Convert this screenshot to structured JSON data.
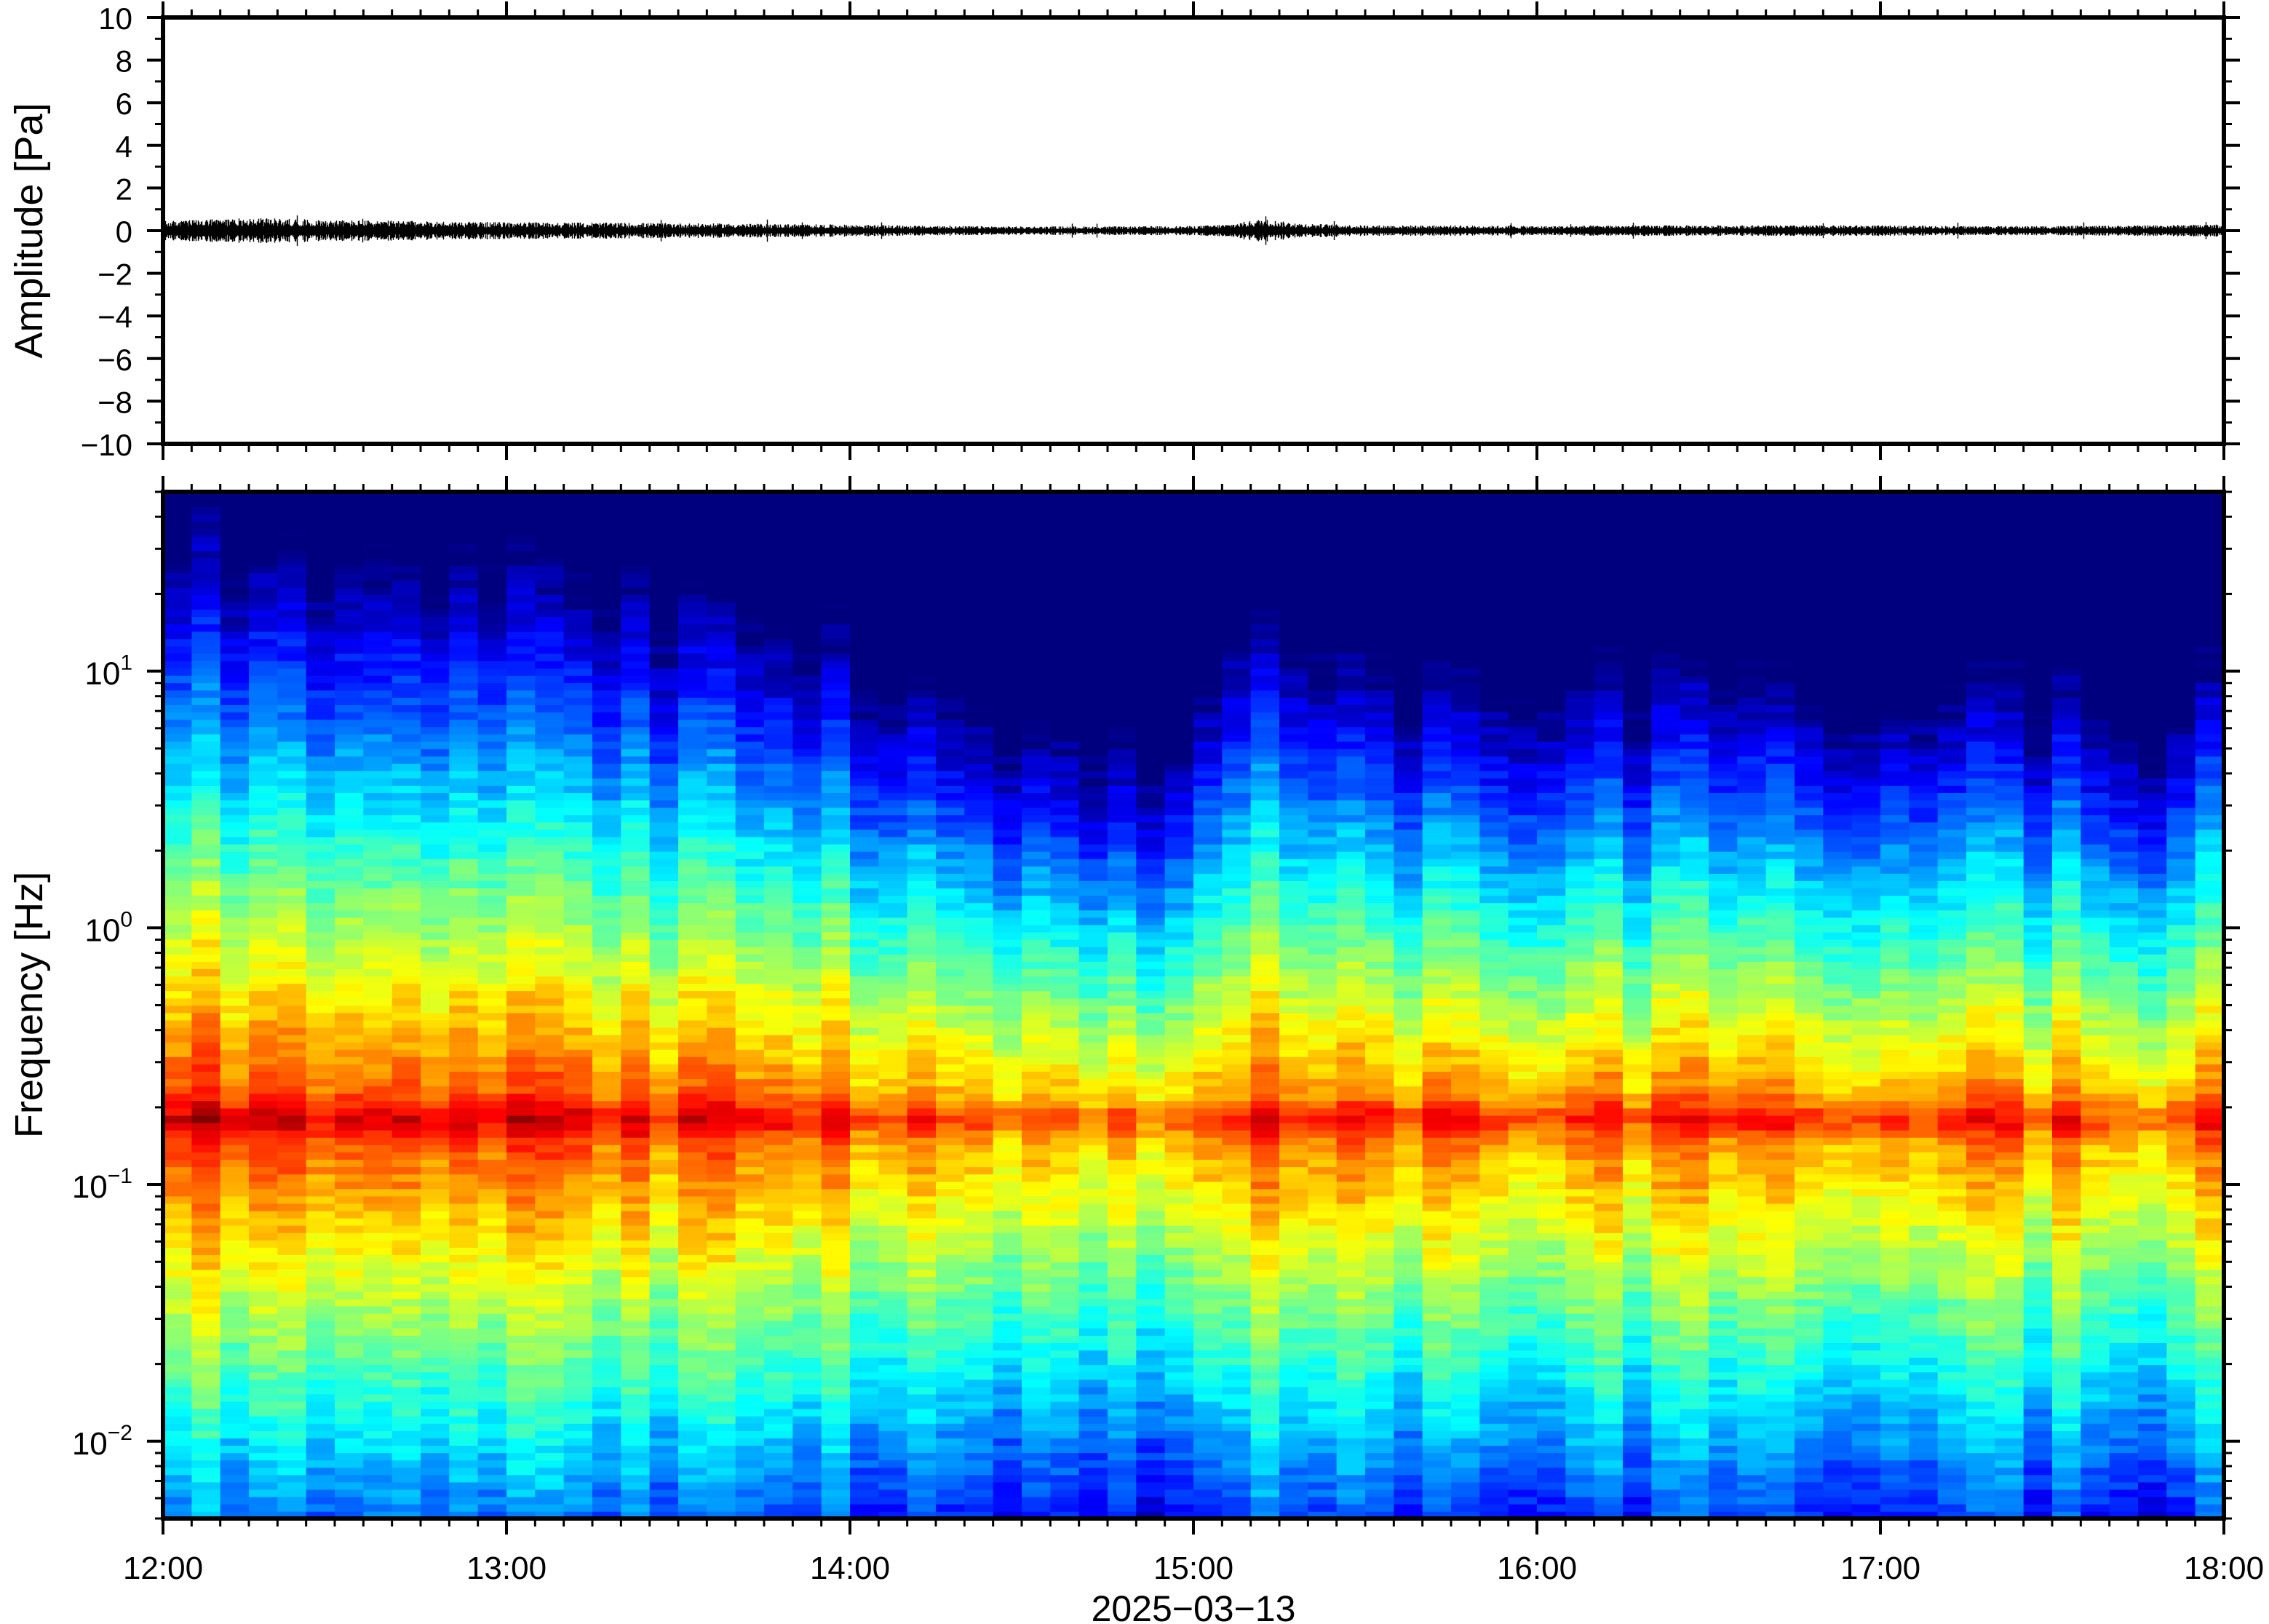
{
  "chart_data": [
    {
      "type": "line",
      "ylabel": "Amplitude [Pa]",
      "ylim": [
        -10,
        10
      ],
      "y_ticks": [
        "10",
        "8",
        "6",
        "4",
        "2",
        "0",
        "−2",
        "−4",
        "−6",
        "−8",
        "−10"
      ],
      "y_tick_values": [
        10,
        8,
        6,
        4,
        2,
        0,
        -2,
        -4,
        -6,
        -8,
        -10
      ],
      "xlim_hours": [
        12,
        18
      ],
      "series": [
        {
          "envelope_x_hours": [
            12.0,
            12.25,
            12.5,
            12.75,
            13.0,
            13.25,
            13.5,
            13.75,
            14.0,
            14.25,
            14.5,
            14.75,
            15.0,
            15.1,
            15.2,
            15.3,
            15.5,
            15.75,
            16.0,
            16.25,
            16.5,
            16.75,
            17.0,
            17.25,
            17.5,
            17.75,
            18.0
          ],
          "envelope_amplitude_pa": [
            0.45,
            0.6,
            0.5,
            0.45,
            0.4,
            0.38,
            0.35,
            0.32,
            0.28,
            0.22,
            0.2,
            0.2,
            0.22,
            0.3,
            0.55,
            0.35,
            0.25,
            0.25,
            0.22,
            0.25,
            0.25,
            0.25,
            0.25,
            0.22,
            0.22,
            0.25,
            0.3
          ],
          "color": "#000000"
        }
      ]
    },
    {
      "type": "heatmap",
      "ylabel": "Frequency [Hz]",
      "y_scale": "log",
      "ylim": [
        0.005,
        50
      ],
      "y_ticks": [
        {
          "value": 10,
          "base": "10",
          "exp": "1"
        },
        {
          "value": 1,
          "base": "10",
          "exp": "0"
        },
        {
          "value": 0.1,
          "base": "10",
          "exp": "−1"
        },
        {
          "value": 0.01,
          "base": "10",
          "exp": "−2"
        }
      ],
      "x_ticks": [
        "12:00",
        "13:00",
        "14:00",
        "15:00",
        "16:00",
        "17:00",
        "18:00"
      ],
      "x_tick_hours": [
        12,
        13,
        14,
        15,
        16,
        17,
        18
      ],
      "xlabel": "2025−03−13",
      "colormap": [
        "#00007f",
        "#0000ff",
        "#007fff",
        "#00ffff",
        "#7fff7f",
        "#ffff00",
        "#ff7f00",
        "#ff0000",
        "#7f0000"
      ],
      "power_profile": {
        "time_hours": [
          12.0,
          12.5,
          13.0,
          13.5,
          14.0,
          14.5,
          14.85,
          15.0,
          15.1,
          15.5,
          16.0,
          16.5,
          17.0,
          17.5,
          17.8,
          18.0
        ],
        "noise_level_0_to_1": [
          0.62,
          0.6,
          0.58,
          0.54,
          0.45,
          0.3,
          0.22,
          0.28,
          0.52,
          0.4,
          0.38,
          0.4,
          0.35,
          0.38,
          0.3,
          0.42
        ]
      },
      "dominant_band_hz": 0.18
    }
  ]
}
